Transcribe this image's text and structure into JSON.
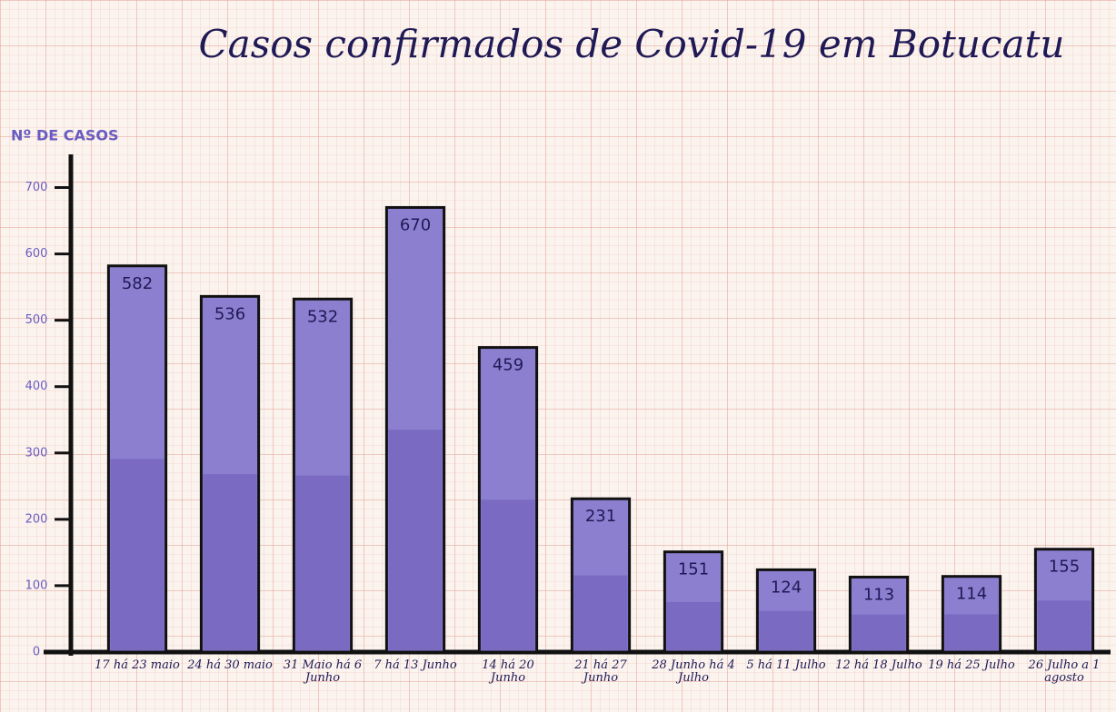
{
  "chart_data": {
    "type": "bar",
    "title": "Casos confirmados de Covid-19 em Botucatu",
    "y_label": "Nº DE CASOS",
    "categories": [
      "17 há 23 maio",
      "24 há 30 maio",
      "31 Maio há 6 Junho",
      "7 há 13 Junho",
      "14 há 20 Junho",
      "21 há 27 Junho",
      "28 Junho há 4 Julho",
      "5 há 11 Julho",
      "12 há 18 Julho",
      "19 há 25 Julho",
      "26 Julho a 1 agosto"
    ],
    "values": [
      582,
      536,
      532,
      670,
      459,
      231,
      151,
      124,
      113,
      114,
      155
    ],
    "color": "#8c7fd0",
    "ylim": [
      0,
      750
    ],
    "yticks": [
      0,
      100,
      200,
      300,
      400,
      500,
      600,
      700
    ]
  }
}
